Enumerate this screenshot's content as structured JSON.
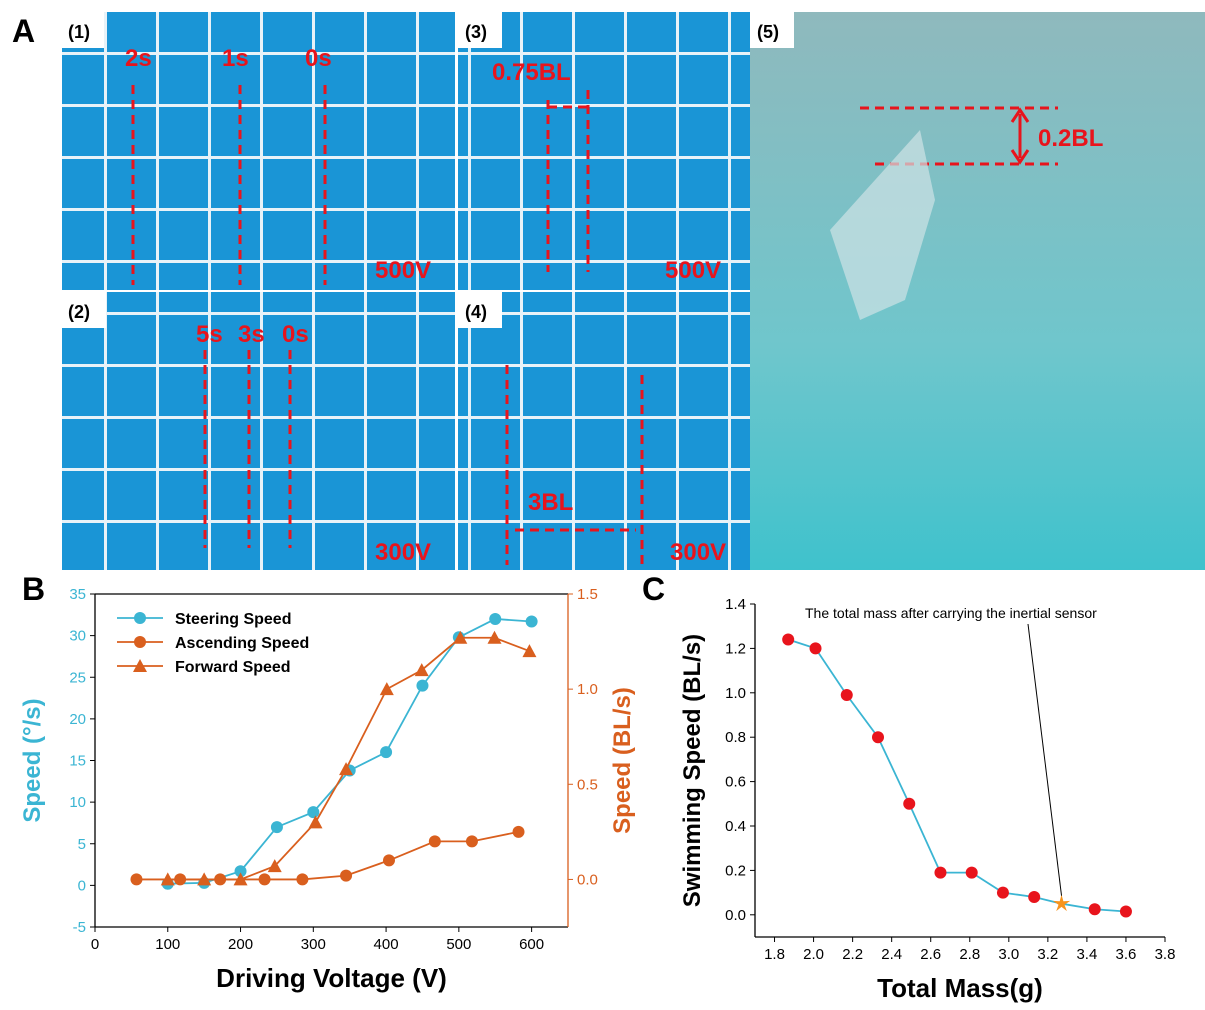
{
  "panel_a": {
    "label": "A",
    "photos": [
      {
        "label": "(1)",
        "annotations": [
          "2s",
          "1s",
          "0s",
          "500V"
        ]
      },
      {
        "label": "(3)",
        "annotations": [
          "0.75BL",
          "500V"
        ]
      },
      {
        "label": "(5)",
        "annotations": [
          "0.2BL"
        ]
      },
      {
        "label": "(2)",
        "annotations": [
          "5s",
          "3s",
          "0s",
          "300V"
        ]
      },
      {
        "label": "(4)",
        "annotations": [
          "3BL",
          "300V"
        ]
      }
    ]
  },
  "chart_data": [
    {
      "type": "line",
      "panel_label": "B",
      "xlabel": "Driving Voltage (V)",
      "ylabel": "Speed (°/s)",
      "y2label": "Speed (BL/s)",
      "ylabel_color": "#3bb5d3",
      "y2label_color": "#d95f1e",
      "xlim": [
        0,
        650
      ],
      "xticks": [
        0,
        100,
        200,
        300,
        400,
        500,
        600
      ],
      "ylim": [
        -5,
        35
      ],
      "yticks": [
        -5,
        0,
        5,
        10,
        15,
        20,
        25,
        30,
        35
      ],
      "y2lim": [
        -0.25,
        1.5
      ],
      "y2ticks": [
        {
          "value": 0,
          "label": "0.0"
        },
        0.5,
        {
          "value": 1,
          "label": "1.0"
        },
        1.5
      ],
      "legend": "upper left",
      "series": [
        {
          "name": "Steering Speed",
          "color": "#3bb5d3",
          "marker": "circle",
          "x": [
            100,
            150,
            200,
            250,
            300,
            350,
            400,
            450,
            500,
            550,
            600
          ],
          "values": [
            0.2,
            0.3,
            1.7,
            7,
            8.8,
            13.8,
            16,
            24,
            29.8,
            32,
            31.7
          ]
        },
        {
          "name": "Ascending Speed",
          "color": "#d95f1e",
          "marker": "circle",
          "axis": "y2",
          "x": [
            57,
            117,
            172,
            233,
            285,
            345,
            404,
            467,
            518,
            582
          ],
          "values": [
            0,
            0,
            0,
            0,
            0,
            0.02,
            0.1,
            0.2,
            0.2,
            0.25
          ]
        },
        {
          "name": "Forward Speed",
          "color": "#d95f1e",
          "marker": "triangle",
          "axis": "y2",
          "x": [
            100,
            150,
            200,
            247,
            303,
            345,
            401,
            449,
            502,
            549,
            597
          ],
          "values": [
            0,
            0,
            0,
            0.07,
            0.3,
            0.58,
            1.0,
            1.1,
            1.27,
            1.27,
            1.2
          ]
        }
      ]
    },
    {
      "type": "line",
      "panel_label": "C",
      "xlabel": "Total Mass(g)",
      "ylabel": "Swimming Speed (BL/s)",
      "xlim": [
        1.7,
        3.8
      ],
      "xticks": [
        1.8,
        {
          "value": 2,
          "label": "2.0"
        },
        2.2,
        2.4,
        2.6,
        2.8,
        {
          "value": 3,
          "label": "3.0"
        },
        3.2,
        3.4,
        3.6,
        3.8
      ],
      "ylim": [
        -0.1,
        1.4
      ],
      "yticks": [
        {
          "value": 0,
          "label": "0.0"
        },
        0.2,
        0.4,
        0.6,
        0.8,
        {
          "value": 1,
          "label": "1.0"
        },
        1.2,
        1.4
      ],
      "annotation": "The total mass after carrying the inertial sensor",
      "highlight": {
        "index": 9,
        "color": "#f7941d",
        "marker": "star"
      },
      "series": [
        {
          "color": "#3bb5d3",
          "marker_color": "#e8141c",
          "marker": "circle",
          "x": [
            1.87,
            2.01,
            2.17,
            2.33,
            2.49,
            2.65,
            2.81,
            2.97,
            3.13,
            3.27,
            3.44,
            3.6
          ],
          "values": [
            1.24,
            1.2,
            0.99,
            0.8,
            0.5,
            0.19,
            0.19,
            0.1,
            0.08,
            0.05,
            0.025,
            0.015
          ]
        }
      ]
    }
  ]
}
